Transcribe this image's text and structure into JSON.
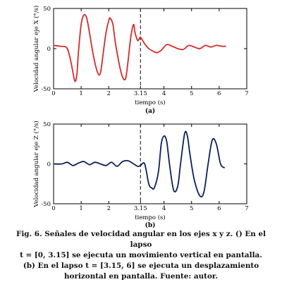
{
  "colors": {
    "series_x": "#d52b2b",
    "series_z": "#0d1f5c",
    "axis": "#000000",
    "marker_line": "#333333"
  },
  "chart_data": [
    {
      "type": "line",
      "panel_label": "(a)",
      "xlabel": "tiempo (s)",
      "ylabel": "Velocidad angular eje X (°/s)",
      "xlim": [
        0,
        7
      ],
      "ylim": [
        -50,
        50
      ],
      "xticks": [
        "0",
        "1",
        "2",
        "3.15",
        "4",
        "5",
        "6",
        "7"
      ],
      "xtick_values": [
        0,
        1,
        2,
        3.15,
        4,
        5,
        6,
        7
      ],
      "yticks": [
        -50,
        0,
        50
      ],
      "vline_x": 3.15,
      "grid": false,
      "series": [
        {
          "color": "#d52b2b",
          "x": [
            0,
            0.25,
            0.45,
            0.55,
            0.65,
            0.75,
            0.8,
            0.85,
            0.9,
            1.0,
            1.1,
            1.2,
            1.3,
            1.45,
            1.6,
            1.7,
            1.8,
            1.9,
            2.0,
            2.05,
            2.15,
            2.25,
            2.45,
            2.6,
            2.7,
            2.8,
            2.9,
            2.95,
            3.05,
            3.15,
            3.3,
            3.45,
            3.6,
            3.75,
            3.9,
            4.1,
            4.3,
            4.5,
            4.7,
            4.9,
            5.1,
            5.3,
            5.5,
            5.7,
            5.9,
            6.1,
            6.25
          ],
          "y": [
            4,
            3,
            2,
            -5,
            -20,
            -38,
            -40,
            -30,
            -5,
            30,
            42,
            38,
            20,
            -10,
            -30,
            -30,
            -5,
            20,
            35,
            38,
            30,
            5,
            -30,
            -38,
            -15,
            15,
            30,
            20,
            10,
            14,
            6,
            0,
            -3,
            -5,
            -2,
            5,
            3,
            0,
            -1,
            4,
            2,
            0,
            4,
            2,
            4,
            3,
            3
          ]
        }
      ]
    },
    {
      "type": "line",
      "panel_label": "(b)",
      "xlabel": "tiempo (s)",
      "ylabel": "Velocidad angular eje Z (°/s)",
      "xlim": [
        0,
        7
      ],
      "ylim": [
        -50,
        50
      ],
      "xticks": [
        "0",
        "1",
        "2",
        "3.15",
        "4",
        "5",
        "6",
        "7"
      ],
      "xtick_values": [
        0,
        1,
        2,
        3.15,
        4,
        5,
        6,
        7
      ],
      "yticks": [
        -50,
        0,
        50
      ],
      "vline_x": 3.15,
      "grid": false,
      "series": [
        {
          "color": "#0d1f5c",
          "x": [
            0,
            0.3,
            0.5,
            0.7,
            0.9,
            1.1,
            1.3,
            1.5,
            1.7,
            1.9,
            2.1,
            2.3,
            2.5,
            2.7,
            2.9,
            3.05,
            3.15,
            3.3,
            3.45,
            3.55,
            3.65,
            3.8,
            3.9,
            4.0,
            4.1,
            4.2,
            4.35,
            4.5,
            4.6,
            4.75,
            4.85,
            4.95,
            5.1,
            5.3,
            5.45,
            5.6,
            5.75,
            5.9,
            6.05,
            6.2
          ],
          "y": [
            0,
            0,
            2,
            -2,
            1,
            3,
            -1,
            2,
            0,
            -2,
            2,
            -3,
            3,
            4,
            0,
            -3,
            -2,
            0,
            -25,
            -30,
            -30,
            -10,
            25,
            35,
            28,
            0,
            -33,
            -28,
            0,
            38,
            35,
            10,
            -20,
            -40,
            -35,
            0,
            30,
            25,
            0,
            -5
          ]
        }
      ]
    }
  ],
  "caption": {
    "line1": "Fig. 6. Señales de velocidad angular en los ejes x y z. () En el lapso",
    "line2": "t = [0, 3.15] se ejecuta un movimiento vertical en pantalla.",
    "line3": "(b) En el lapso t = [3.15, 6] se ejecuta un desplazamiento",
    "line4": "horizontal en pantalla. Fuente: autor."
  }
}
